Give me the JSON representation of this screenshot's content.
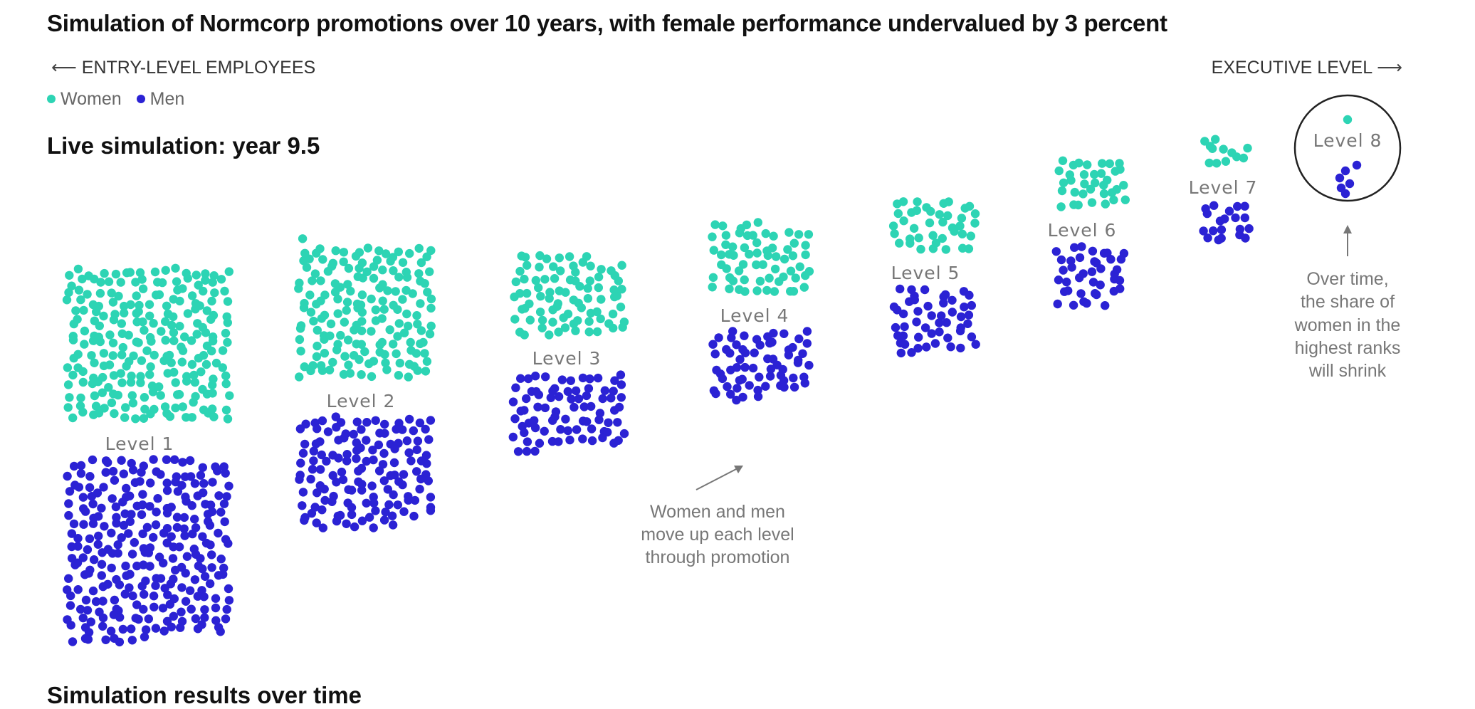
{
  "header": {
    "title": "Simulation of Normcorp promotions over 10 years, with female performance undervalued by 3 percent",
    "left_direction": "ENTRY-LEVEL EMPLOYEES",
    "right_direction": "EXECUTIVE LEVEL",
    "left_arrow": "⟵",
    "right_arrow": "⟶"
  },
  "legend": {
    "women_label": "Women",
    "men_label": "Men"
  },
  "simulation": {
    "heading_prefix": "Live simulation: year",
    "year": "9.5"
  },
  "next_section_heading": "Simulation results over time",
  "annotations": {
    "promotion_lines": [
      "Women and men",
      "move up each level",
      "through promotion"
    ],
    "shrink_lines": [
      "Over time,",
      "the share of",
      "women in the",
      "highest ranks",
      "will shrink"
    ]
  },
  "colors": {
    "women": "#2dd4b4",
    "men": "#2b22d4",
    "label": "#777777"
  },
  "chart_data": {
    "type": "scatter",
    "title": "Simulation of Normcorp promotions over 10 years, with female performance undervalued by 3 percent",
    "series": [
      {
        "name": "Women",
        "values": [
          240,
          170,
          85,
          65,
          40,
          35,
          12,
          1
        ]
      },
      {
        "name": "Men",
        "values": [
          280,
          140,
          80,
          65,
          50,
          40,
          20,
          6
        ]
      }
    ],
    "categories": [
      "Level 1",
      "Level 2",
      "Level 3",
      "Level 4",
      "Level 5",
      "Level 6",
      "Level 7",
      "Level 8"
    ],
    "xlabel": "",
    "ylabel": "",
    "unit": "employees"
  }
}
